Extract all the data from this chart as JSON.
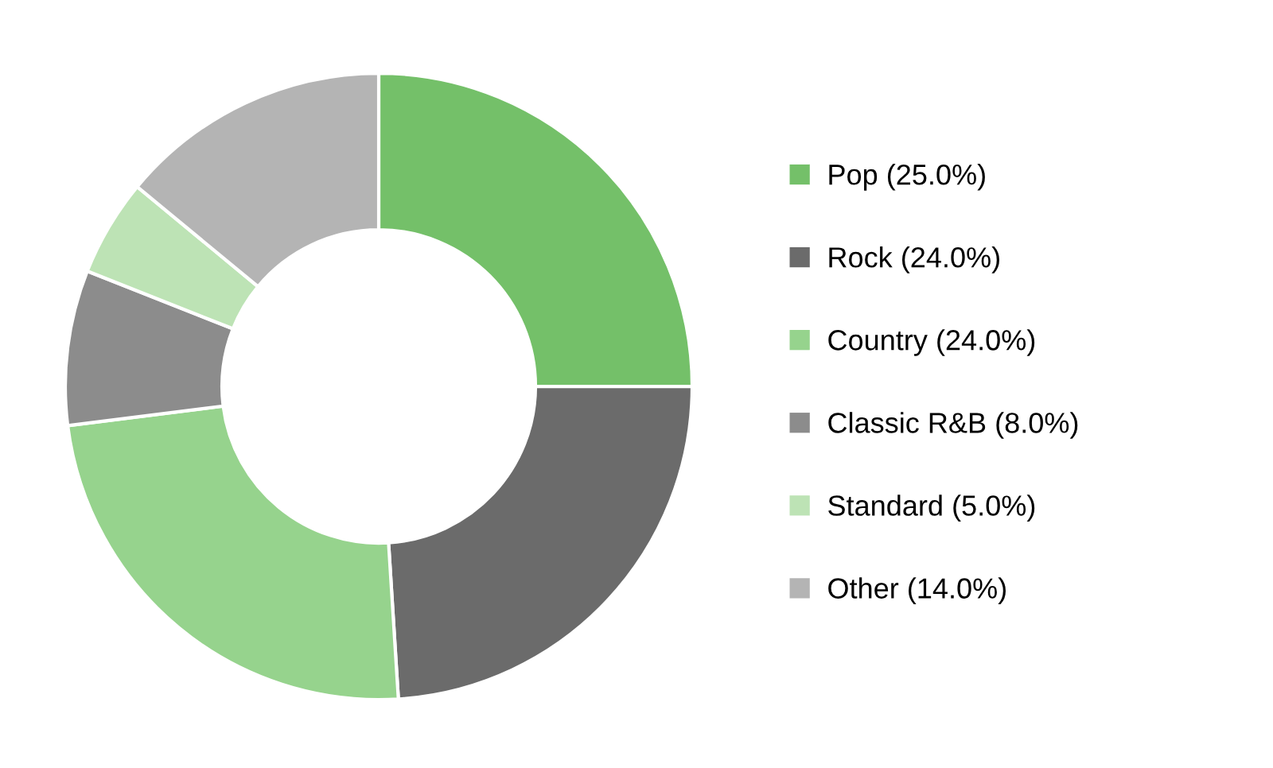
{
  "chart_data": {
    "type": "donut",
    "categories": [
      "Pop (25.0%)",
      "Rock (24.0%)",
      "Country (24.0%)",
      "Classic R&B (8.0%)",
      "Standard (5.0%)",
      "Other (14.0%)"
    ],
    "values": [
      25,
      24,
      24,
      8,
      5,
      14
    ],
    "colors": [
      "#74c069",
      "#6b6b6b",
      "#96d38d",
      "#8c8c8c",
      "#bde3b5",
      "#b4b4b4"
    ],
    "legend": "right"
  }
}
